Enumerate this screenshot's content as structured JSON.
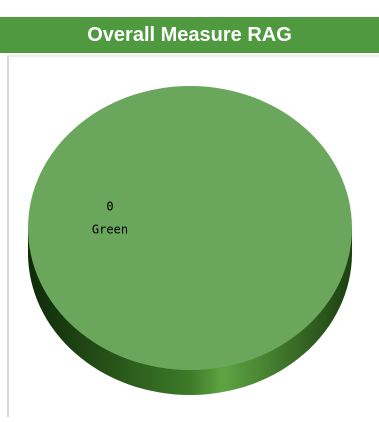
{
  "chart_data": {
    "type": "pie",
    "title": "Overall Measure RAG",
    "categories": [
      "Green"
    ],
    "values": [
      0
    ],
    "colors": [
      "#6aa75c"
    ]
  }
}
